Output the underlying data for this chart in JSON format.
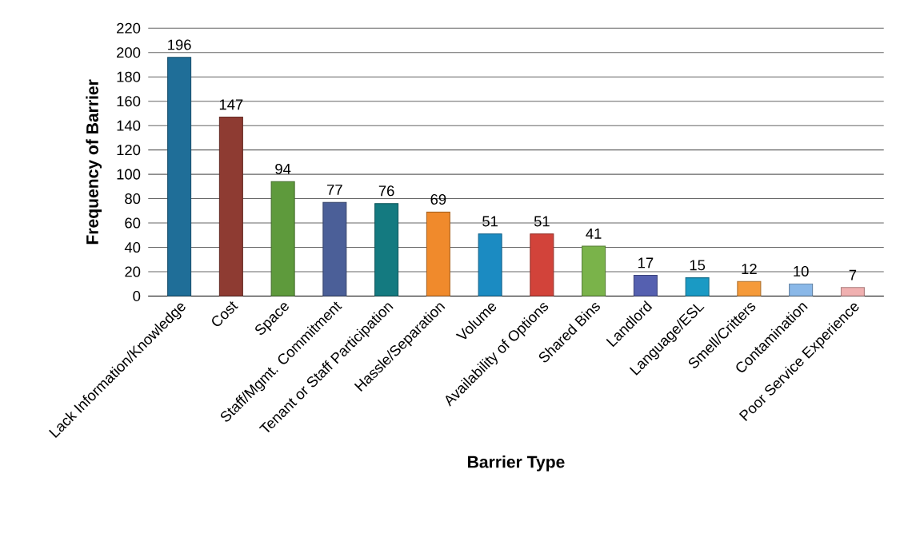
{
  "chart_data": {
    "type": "bar",
    "xlabel": "Barrier Type",
    "ylabel": "Frequency of  Barrier",
    "categories": [
      "Lack Information/Knowledge",
      "Cost",
      "Space",
      "Staff/Mgmt. Commitment",
      "Tenant or Staff Participation",
      "Hassle/Separation",
      "Volume",
      "Availability of Options",
      "Shared Bins",
      "Landlord",
      "Language/ESL",
      "Smell/Critters",
      "Contamination",
      "Poor Service Experience"
    ],
    "values": [
      196,
      147,
      94,
      77,
      76,
      69,
      51,
      51,
      41,
      17,
      15,
      12,
      10,
      7
    ],
    "colors": [
      "#1f6e98",
      "#8e3b32",
      "#5e9a3c",
      "#4b5f98",
      "#147a80",
      "#f08a2c",
      "#1b8bc2",
      "#d2433a",
      "#7ab34a",
      "#5560b0",
      "#1a9ac4",
      "#f59a3a",
      "#8ab8e8",
      "#f0b0b0"
    ],
    "ylim": [
      0,
      220
    ],
    "yticks": [
      0,
      20,
      40,
      60,
      80,
      100,
      120,
      140,
      160,
      180,
      200,
      220
    ],
    "grid": "y",
    "data_labels": true
  }
}
